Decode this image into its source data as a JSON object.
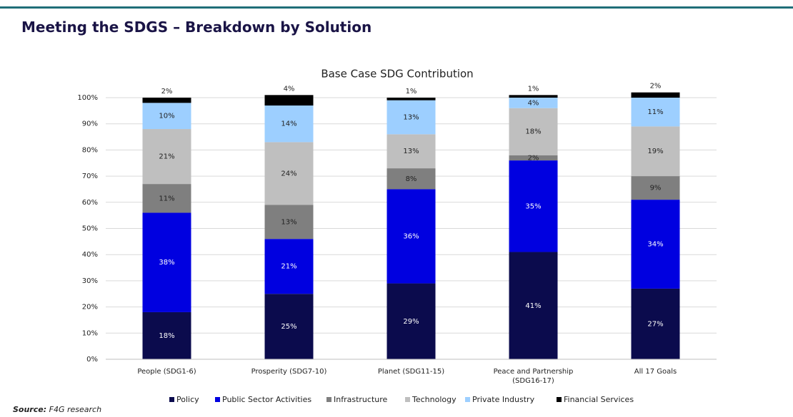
{
  "header": {
    "title": "Meeting the SDGS – Breakdown by Solution"
  },
  "chart_data": {
    "type": "stacked_bar",
    "title": "Base Case SDG Contribution",
    "categories": [
      "People (SDG1-6)",
      "Prosperity (SDG7-10)",
      "Planet (SDG11-15)",
      "Peace and Partnership (SDG16-17)",
      "All 17 Goals"
    ],
    "series": [
      {
        "name": "Policy",
        "color": "#0b0b4d",
        "values": [
          18,
          25,
          29,
          41,
          27
        ],
        "value_labels": [
          "18%",
          "25%",
          "29%",
          "41%",
          "27%"
        ]
      },
      {
        "name": "Public Sector Activities",
        "color": "#0000e0",
        "values": [
          38,
          21,
          36,
          35,
          34
        ],
        "value_labels": [
          "38%",
          "21%",
          "36%",
          "35%",
          "34%"
        ]
      },
      {
        "name": "Infrastructure",
        "color": "#7f7f7f",
        "values": [
          11,
          13,
          8,
          2,
          9
        ],
        "value_labels": [
          "11%",
          "13%",
          "8%",
          "2%",
          "9%"
        ]
      },
      {
        "name": "Technology",
        "color": "#bfbfbf",
        "values": [
          21,
          24,
          13,
          18,
          19
        ],
        "value_labels": [
          "21%",
          "24%",
          "13%",
          "18%",
          "19%"
        ]
      },
      {
        "name": "Private Industry",
        "color": "#9dcfff",
        "values": [
          10,
          14,
          13,
          4,
          11
        ],
        "value_labels": [
          "10%",
          "14%",
          "13%",
          "4%",
          "11%"
        ]
      },
      {
        "name": "Financial Services",
        "color": "#000000",
        "values": [
          2,
          4,
          1,
          1,
          2
        ],
        "value_labels": [
          "2%",
          "4%",
          "1%",
          "1%",
          "2%"
        ]
      }
    ],
    "ylim": [
      0,
      100
    ],
    "yticks": [
      {
        "value": 0,
        "label": "0%"
      },
      {
        "value": 10,
        "label": "10%"
      },
      {
        "value": 20,
        "label": "20%"
      },
      {
        "value": 30,
        "label": "30%"
      },
      {
        "value": 40,
        "label": "40%"
      },
      {
        "value": 50,
        "label": "50%"
      },
      {
        "value": 60,
        "label": "60%"
      },
      {
        "value": 70,
        "label": "70%"
      },
      {
        "value": 80,
        "label": "80%"
      },
      {
        "value": 90,
        "label": "90%"
      },
      {
        "value": 100,
        "label": "100%"
      }
    ],
    "grid": true,
    "legend": "bottom"
  },
  "footer": {
    "source_label": "Source:",
    "source": "F4G research"
  }
}
